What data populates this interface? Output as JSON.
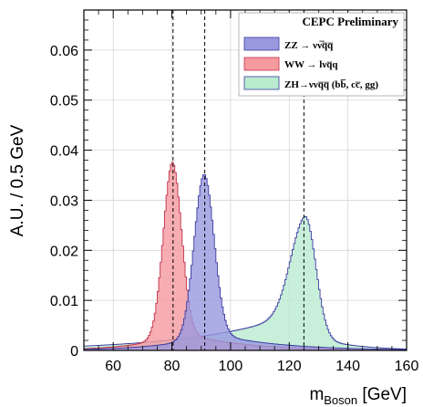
{
  "chart_data": {
    "type": "area",
    "xlabel_main": "m",
    "xlabel_sub": "Boson",
    "xlabel_unit": " [GeV]",
    "ylabel": "A.U. / 0.5 GeV",
    "xlim": [
      50,
      160
    ],
    "ylim": [
      0,
      0.068
    ],
    "xticks": [
      60,
      80,
      100,
      120,
      140,
      160
    ],
    "yticks": [
      0,
      0.01,
      0.02,
      0.03,
      0.04,
      0.05,
      0.06
    ],
    "ytick_labels": [
      "0",
      "0.01",
      "0.02",
      "0.03",
      "0.04",
      "0.05",
      "0.06"
    ],
    "vlines": [
      80.4,
      91.2,
      125.0
    ],
    "legend_title": "CEPC Preliminary",
    "series": [
      {
        "name": "ZH→ννq̅q̅ (bb̅, cc̅, gg)",
        "color": "#b9ebcf",
        "line": "#3a3aa0",
        "peak": 125.5,
        "amp": 0.0268,
        "gl": 5.0,
        "gr": 3.6,
        "tl": 0.3,
        "tr": 0.12,
        "sl": 34,
        "sr": 14
      },
      {
        "name": "WW → lνq̅q",
        "color": "#f59a9f",
        "line": "#c0304a",
        "peak": 80.2,
        "amp": 0.0376,
        "gl": 3.1,
        "gr": 3.1,
        "tl": 0.08,
        "tr": 0.11,
        "sl": 14,
        "sr": 20
      },
      {
        "name": "ZZ → νν̅q̅q̅",
        "color": "#9999e0",
        "line": "#3a3aa0",
        "peak": 91.0,
        "amp": 0.0352,
        "gl": 3.4,
        "gr": 3.4,
        "tl": 0.08,
        "tr": 0.11,
        "sl": 16,
        "sr": 22
      }
    ]
  }
}
